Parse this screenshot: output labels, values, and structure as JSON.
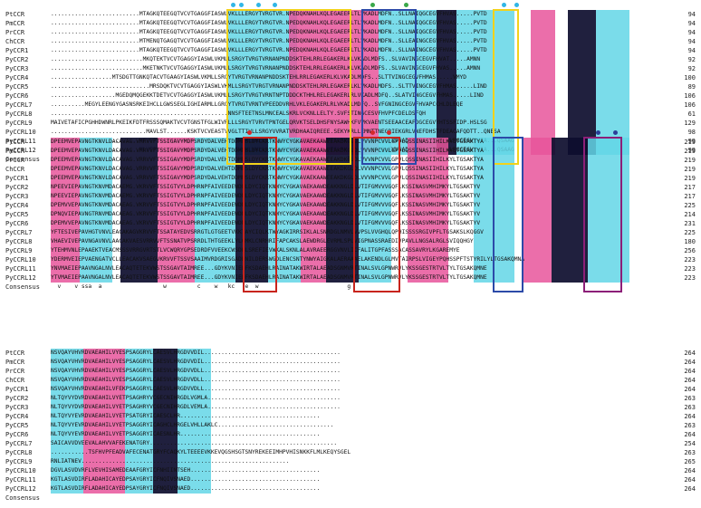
{
  "colors": {
    "identical": "#0d0d2e",
    "high": "#e8559b",
    "similar": "#63d6e6",
    "box_yellow": "#f2d21b",
    "box_blue": "#2c4aa8",
    "box_red": "#c8241c",
    "box_purple": "#8c1f78",
    "dot_cyan": "#31b6e6",
    "dot_green": "#3aa84a",
    "dot_red": "#d42a2a",
    "dot_navy": "#2b3f98"
  },
  "consensus_label": "Consensus",
  "blocks": [
    {
      "rows": [
        {
          "name": "PtCCR",
          "seq": "..........................MTAGKQTEEGQTVCVTGAGGFIASWLVKLLLERGYTVRGTVR.NPEDQKNAHLKQLEGAEERLTLVKADLMDFN..SLLNAIQGCEGVFHVAS.....PVTD",
          "num": "94"
        },
        {
          "name": "PmCCR",
          "seq": "..........................MTAGKQTEEGQTVCVTGAGGFIASWLVKLLLERGYTVRGTVR.NPEDQKNAHLKQLEGAEERLTLVKADLMDFN..SLLNAIQGCEGVFHVAS.....PVTD",
          "num": "94"
        },
        {
          "name": "PrCCR",
          "seq": "..........................MTAGKQTEEGQTVCVTGAGGFIASWLVKLLLERGYTVRGTVR.NPEDQKNAHLKQLEGAEERLTLVKADLMDFN..SLLNAIQGCEGVFHVAS.....PVTD",
          "num": "94"
        },
        {
          "name": "ChCCR",
          "seq": "..........................MTMENQTGAGQTVCVTGAGGFIASWLVKLLLERGYTVRGTVR.NPEDQKNAHLKQLEGAEERLTLVKADLMDFN..SLLEAINGCEGVFHVAS.....PVTD",
          "num": "94"
        },
        {
          "name": "PyCCR1",
          "seq": "..........................MTAGKQTEEGQTVCVTGAGGFIASWLVKLLLERGYTVRGTVR.NPEDQKNAHLKQLEGAEERLTLVKADLMDFN..SLLNAINGCEGVFHVAS.....PVTD",
          "num": "94"
        },
        {
          "name": "PyCCR2",
          "seq": "...........................MKQTEKTVCVTGAGGYIASWLVKMLLSRGYTVRGTVRNANPNDDSKTEHLRRLEGAKERLKLVKADLMDFS..SLVAVINGCEGVFHVAT.....AMNN",
          "num": "92"
        },
        {
          "name": "PyCCR3",
          "seq": "...........................MKETNKTVCVTGAGGYIASWLVKMLLSRGYTVRGTVRNANPNDDSKTEHLRRLEGAKERLKLVKADLMDFS..SLVAVINGCEGVFHVAS.....AMNN",
          "num": "92"
        },
        {
          "name": "PyCCR4",
          "seq": "..................MTSDGTTGNKQTACVTGAAGYIASWLVKMLLSRGYTVRGTVRNANPNDDSKTEHLRRLEGAKERLKLVKADLMDFS..SLTTVINGCEGVFHMAS.....VMYD",
          "num": "100"
        },
        {
          "name": "PyCCR5",
          "seq": ".............................MRSDQKTVCVTGAGGYIASWLVKMLLSRGYTVRGTVRNANPNDDSKTEHLRRLEGAKERLKLVKADLMDFS..SLTTVINGCEGVFHMAS.....LIND",
          "num": "89"
        },
        {
          "name": "PyCCR6",
          "seq": "...................MGEDQMQGEKKTDETVCVTGAGGYIASWLVKMLLSRGYTVRGTVRNTNPTDDDCKTHHLRELEGAKERLRLVKADLMDFQ..SLATVINGCEGVFHMAS.....LIND",
          "num": "106"
        },
        {
          "name": "PyCCRL7",
          "seq": "..........MEGYLEENGYGASNSRKEIHCLLGWSSEGLIGHIARMLLGRGYTVRGTVRNTVPEEDDVRHLVKLEGAKERLRLVKADLMDFQ..SVFGNINGCEGVFHVAPCCHLDLEQE",
          "num": "106"
        },
        {
          "name": "PyCCRL8",
          "seq": "....................................................NNSFTEETNSLMNCEALSKRLVCKNLLELTY.SVFSTINGCESVFHVPFCDELDSFQH",
          "num": "61"
        },
        {
          "name": "PyCCRL9",
          "seq": "MAIVETAFICPGHHDWNRLPKEIKFDTFRSSSQMAKTVCVTGNSTFGLWIVRLLLSRGYTVRVTPNTGELQRVKTSELDHSFNYSAWHKFVVKVAENTSEEAACEAFDGCEGVYHTSSFIDP.HSLSG",
          "num": "129"
        },
        {
          "name": "PyCCRL10",
          "seq": "............................MAVLST......KSKTVCVEASTVVGLTTIVLLSRGYVVRATVRDHAAIQREEE.SEKYKRLLEMNTTNEGRIEKGRLVNEFDHSTFDEACAFQDTT..QNESA",
          "num": "98"
        },
        {
          "name": "PyCCRL11",
          "seq": "..........................MFVFPSGLNNSEGNGKVKTVCVTGAGGYIVSWLVKLLLSRGYTVRGTVRDAAIE.VESLRK.....KLMGDRLEVVSADLMDEG..IITDALRGCEGVFHIA...QSAAG",
          "num": "99"
        },
        {
          "name": "PyCCRL12",
          "seq": "..........................MLVFPSGLNNSEGNGKVKTVCVTGAGGYIVSWLVKLLLSRGYTVRGTVRDAAIE.VESLRK.....KLMGDRLEVVSADLMDEG..IITDALRGCEGVFHIA...QSAAG",
          "num": "99"
        }
      ],
      "consensus": "                                                                                       l   a              gn g  f      "
    },
    {
      "rows": [
        {
          "name": "PtCCR",
          "seq": "DPEEMVEPAVNGTKNVLDACAVAG.VRRVVFTSSIGAVYMDPSRDYDALVEHTDDMNSLDYCKRTKNWYCYGKAVAEKAAWEEAKDKGLDLVVVNPCVVLGPVLQSSINASIIHILKYLTGSAKTYA",
          "num": "219"
        },
        {
          "name": "PmCCR",
          "seq": "DPEEMVEPAVNGTKNVLDACAVAG.VRRVVFTSSIGAVYMDPSRDYDALVEHTDDMNSLDYCKRTKNWYCYGKAVAEKAAWEEAKDKGLDLVVVNPCVVLGPVLQSSINASIIHILKYLTGSAKTYA",
          "num": "219"
        },
        {
          "name": "PrCCR",
          "seq": "DPEEMVEPAVNGTKNVLDACAVAG.VRRVVFTSSIGAVYMDPSRDYDALVEHTDDMNSLDYCKRTKNWYCYGKAVAEKAAWEEAKDKGLDLVVVNPCVVLGPVLQSSINASIIHILKYLTGSAKTYA",
          "num": "219"
        },
        {
          "name": "ChCCR",
          "seq": "DPEEMVEPAVNGTKNVLDACAVAG.VRRVVFTSSIGAVYMDPSRDYDALVEHTDDMNSLDYCKRTKNWYCYGKAVAEKAAWEEAKDKGLDLVVVNPCVVLGPVLQSSINASIIHILKYLTGSAKTYA",
          "num": "219"
        },
        {
          "name": "PyCCR1",
          "seq": "DPEEMVEPAVNGTKNVLDACAVAG.VRRVVFTSSIGAVYMDPSRDYDALVEHTDDMNSLDYCKRTKNWYCYGKAVAEKAAWEEAKDKGLDLVVVNPCVVLGPVLQSSINASIIHILKYLTGSAKTYA",
          "num": "219"
        },
        {
          "name": "PyCCR2",
          "seq": "NPEEVIEPAVNGTKNVMDACAEMG.VKRVVFTSSIGTVYLDPHRNPFAIVEEDEWDNLDYCIQTKNWYCYGKAVAEKAAWDEAKKNGLDLVTIFGMVVVGQFLKSSINASVMHIMKYLTGSAKTYV",
          "num": "217"
        },
        {
          "name": "PyCCR3",
          "seq": "NPEEVIEPAVNGTKNVMDACAEMG.VKRVVFTSSIGTVYLDPHRNPFAIVEEDEWDNLDYCIQTKNWYCYGKAVAEKAAWDEAKKNGLDLVTIFGMVVVGQFLKSSINASVMHIMKYLTGSAKTYV",
          "num": "217"
        },
        {
          "name": "PyCCR4",
          "seq": "DPEMVVEPAVNGTKNVMDACAEAG.VKRVVFTSSIGTVYLDPHRNPFAIVEEDEWDNLDYCIQTKNWYCYGKAVAEKAAWDEAKKNGLDLVTIFGMVVVGQFLKSSINASVMHIMKYLTGSAKTYV",
          "num": "225"
        },
        {
          "name": "PyCCR5",
          "seq": "DPNQVIEPAVNGTRNVMDACAEAG.VKRVVFTSSIGTVYLDPHRNPFAIVEEDEWDNLDYCIQTKNWYCYGKAVAEKAAWDEAKKNGLDLVTIFGMVVVGQFLKSSINASVMHIMKYLTGSAKTYV",
          "num": "214"
        },
        {
          "name": "PyCCR6",
          "seq": "DPEMVVEPAVNGTKNVMDACAEAG.VKRVVFTSSIGTVYLDPHRNPFAIVEEDEWDNLDYCIQTKNWYCYGKAVAEKAAWDEAKKNGLDLVTIFGMVVVGQFLKSSINASVMHIMKYLTGSAKTYV",
          "num": "231"
        },
        {
          "name": "PyCCRL7",
          "seq": "YFTESIVEPAVHGTVNVLEACAKAGVKRVVFTSSATAYEDVSRRGTLGTGEETVKKTAYCIQLKTWYAGKIRRSIKLALSNRDGLNMVLVVPSLVVGHQLQPHISSSSRGIVPFLTGSAKSLKQGGV",
          "num": "225"
        },
        {
          "name": "PyCCRL8",
          "seq": "VHAEVIVEPAVNGAVNVLAACAKVAESVRRVVFTSSNATVPSRRDLTHTGEEKLYLGMKLCNRHRIFAPCAKSLAEWDRGLEVRMLSPLVIGPNASSRAEDIVPAVLLNGSALRGLSVIQQHGY",
          "num": "180"
        },
        {
          "name": "PyCCRL9",
          "seq": "YTEHMVNLEPAAEKTVEACMSSSVRRGVRTSTLVCWQRYGPSEDRDFVVEEKCWSDHLSREFIEVWKALSKNLALAVRAEERGGVNVLICFALITGPFASSSACASSAVRYLKGAREMYE",
          "num": "256"
        },
        {
          "name": "PyCCRL10",
          "seq": "YDERMVEIEPVAENGATVCLLEACAKVSAEGVKRVVFTSSVSAAIMVRDGRISGADDNILDERSWGDLENCSNTYNWYAIGKALAERAAAELAKENDLGLMVTAIRPSLVIGEYPQHSSPFTSTYRILYLTGSAKQMNA",
          "num": "223"
        },
        {
          "name": "PyCCRL11",
          "seq": "YNVMAEIEPAAVNGALNVLEACAQTETEKVWSTSSGAVTAIMREE...GDYKVNIEDFKSDAEHLRAINATAKWIRTALAEADSGNMVRTINALSVLGPNWRVLYKSSGESTRTVLTYLTGSAKQMNE",
          "num": "223"
        },
        {
          "name": "PyCCRL12",
          "seq": "YTVMAEIEPAAVNGALNVLEACAQTETEKVWSTSSGAVTAIMREE...GDYKVNIEDFKSDAEHLRAINATAKWIRTALAEADSGNMVRTINALSVLGPNWRVLYKSSGESTRTVLTYLTGSAKQMNE",
          "num": "223"
        }
      ],
      "consensus": "  v    v ssa  a                  w         c    w   kc   e  w                          g                    "
    },
    {
      "rows": [
        {
          "name": "PtCCR",
          "seq": "NSVQAYVHVRDVAEAHILVYESPSAGGRYLCAESVLHRGDVVDIL........................................",
          "num": "264"
        },
        {
          "name": "PmCCR",
          "seq": "NSVQAYVHVRDVAEAHILVYESPSAGGRYLCAESVLHRGDVVDIL........................................",
          "num": "264"
        },
        {
          "name": "PrCCR",
          "seq": "NSVQAYVHVRDVAEAHILVYESPSAGGRYLCAESVLHRGDVVDLL........................................",
          "num": "264"
        },
        {
          "name": "ChCCR",
          "seq": "NSVQAYVHVRDVAEAHILVYESPSAGGRYLCAESVLHRGDVVDLL........................................",
          "num": "264"
        },
        {
          "name": "PyCCR1",
          "seq": "NSVQAYVHVRDVAEAHILVFEKPSAGGRYLCAESVLHRGDVVDLL........................................",
          "num": "264"
        },
        {
          "name": "PyCCR2",
          "seq": "NLTQYVYDVRDVAEAHILVYETPSAGHRYVCGECNIHRGDLVGMLA.......................................",
          "num": "263"
        },
        {
          "name": "PyCCR3",
          "seq": "NLTQYVYDVRDVAEAHILVYETPSAGHRYVCGECNIHRGDLVEMLA.......................................",
          "num": "263"
        },
        {
          "name": "PyCCR4",
          "seq": "NLTQYVYEVRDVAEAHILVYETPSATGRYICAESCLHR.........................................",
          "num": "264"
        },
        {
          "name": "PyCCR5",
          "seq": "NLTQYVYEVRDVAEAHILVYETPSAGGRYICAGHCLHRGELVHLLAKLC..................................",
          "num": "263"
        },
        {
          "name": "PyCCR6",
          "seq": "NLTQYVYEVRDVAEAHILVYETPSAGGRYICAESNLHR.........................................",
          "num": "264"
        },
        {
          "name": "PyCCRL7",
          "seq": "SAICAVVDVEEVALAHVVAFEKENATGRY.......................................................",
          "num": "254"
        },
        {
          "name": "PyCCRL8",
          "seq": "...........TSFHVPFEADVAFECENATGRYFCAQKYLTEEEEVKKEVQGSHSGTSNYREKEEIMHPVHISNKKFLMLKEQYSGEL",
          "num": "263"
        },
        {
          "name": "PyCCRL9",
          "seq": "RNLIATNEV.............................................................",
          "num": "265"
        },
        {
          "name": "PyCCRL10",
          "seq": "DGVLASVDVRFLVEVHISAMEDEAAFGRYICFNHIINTSEH......................................",
          "num": "264"
        },
        {
          "name": "PyCCRL11",
          "seq": "KGTLASVDIRFLADAHICAYEDPSAYGRYICFNQIVSNAED......................................",
          "num": "264"
        },
        {
          "name": "PyCCRL12",
          "seq": "KGTLASVDIRFLADAHICAYEDPSAYGRYICFNQIVSNAED......................................",
          "num": "264"
        }
      ],
      "consensus": ""
    }
  ]
}
